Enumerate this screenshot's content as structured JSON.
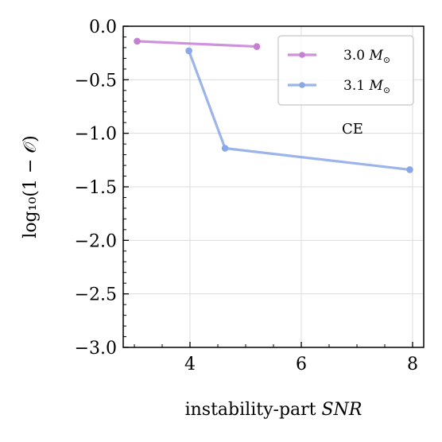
{
  "chart_data": {
    "type": "line",
    "xlabel_prefix": "instability-part ",
    "xlabel_italic": "SNR",
    "ylabel": "log₁₀(1 − 𝒪)",
    "xlim": [
      2.8,
      8.2
    ],
    "ylim": [
      -3.0,
      0.0
    ],
    "x_ticks": [
      4,
      6,
      8
    ],
    "x_tick_labels": [
      "4",
      "6",
      "8"
    ],
    "y_ticks": [
      0.0,
      -0.5,
      -1.0,
      -1.5,
      -2.0,
      -2.5,
      -3.0
    ],
    "y_tick_labels": [
      "0.0",
      "−0.5",
      "−1.0",
      "−1.5",
      "−2.0",
      "−2.5",
      "−3.0"
    ],
    "grid": true,
    "legend_position": "top-right",
    "annotation": "CE",
    "series": [
      {
        "name": "3.0",
        "name_unit": "M",
        "name_sub": "⊙",
        "color": "#c77fd6",
        "x": [
          3.05,
          5.2
        ],
        "y": [
          -0.14,
          -0.19
        ]
      },
      {
        "name": "3.1",
        "name_unit": "M",
        "name_sub": "⊙",
        "color": "#8aa8e8",
        "x": [
          3.98,
          4.63,
          7.95
        ],
        "y": [
          -0.23,
          -1.14,
          -1.34
        ]
      }
    ]
  }
}
